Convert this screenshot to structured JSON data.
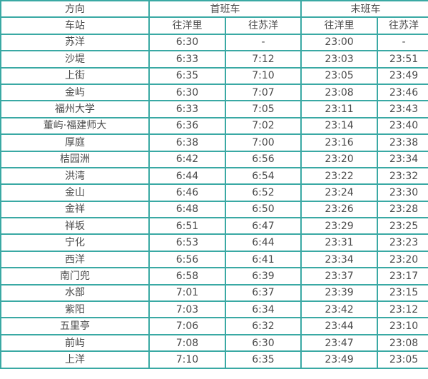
{
  "colors": {
    "border": "#3aa9a4",
    "text": "#4a4a4a"
  },
  "table": {
    "header": {
      "direction_label": "方向",
      "station_label": "车站",
      "first_train_label": "首班车",
      "last_train_label": "末班车",
      "sub_columns": [
        "往洋里",
        "往苏洋",
        "往洋里",
        "往苏洋"
      ]
    },
    "rows": [
      {
        "station": "苏洋",
        "values": [
          "6:30",
          "-",
          "23:00",
          "-"
        ]
      },
      {
        "station": "沙堤",
        "values": [
          "6:33",
          "7:12",
          "23:03",
          "23:51"
        ]
      },
      {
        "station": "上街",
        "values": [
          "6:35",
          "7:10",
          "23:05",
          "23:49"
        ]
      },
      {
        "station": "金屿",
        "values": [
          "6:30",
          "7:07",
          "23:08",
          "23:46"
        ]
      },
      {
        "station": "福州大学",
        "values": [
          "6:33",
          "7:05",
          "23:11",
          "23:43"
        ]
      },
      {
        "station": "董屿·福建师大",
        "values": [
          "6:36",
          "7:02",
          "23:14",
          "23:40"
        ]
      },
      {
        "station": "厚庭",
        "values": [
          "6:38",
          "7:00",
          "23:16",
          "23:38"
        ]
      },
      {
        "station": "桔园洲",
        "values": [
          "6:42",
          "6:56",
          "23:20",
          "23:34"
        ]
      },
      {
        "station": "洪湾",
        "values": [
          "6:44",
          "6:54",
          "23:22",
          "23:32"
        ]
      },
      {
        "station": "金山",
        "values": [
          "6:46",
          "6:52",
          "23:24",
          "23:30"
        ]
      },
      {
        "station": "金祥",
        "values": [
          "6:48",
          "6:50",
          "23:26",
          "23:28"
        ]
      },
      {
        "station": "祥坂",
        "values": [
          "6:51",
          "6:47",
          "23:29",
          "23:25"
        ]
      },
      {
        "station": "宁化",
        "values": [
          "6:53",
          "6:44",
          "23:31",
          "23:23"
        ]
      },
      {
        "station": "西洋",
        "values": [
          "6:56",
          "6:41",
          "23:34",
          "23:20"
        ]
      },
      {
        "station": "南门兜",
        "values": [
          "6:58",
          "6:39",
          "23:37",
          "23:17"
        ]
      },
      {
        "station": "水部",
        "values": [
          "7:01",
          "6:37",
          "23:39",
          "23:15"
        ]
      },
      {
        "station": "紫阳",
        "values": [
          "7:03",
          "6:34",
          "23:42",
          "23:12"
        ]
      },
      {
        "station": "五里亭",
        "values": [
          "7:06",
          "6:32",
          "23:44",
          "23:10"
        ]
      },
      {
        "station": "前屿",
        "values": [
          "7:08",
          "6:30",
          "23:47",
          "23:08"
        ]
      },
      {
        "station": "上洋",
        "values": [
          "7:10",
          "6:35",
          "23:49",
          "23:05"
        ]
      }
    ]
  }
}
